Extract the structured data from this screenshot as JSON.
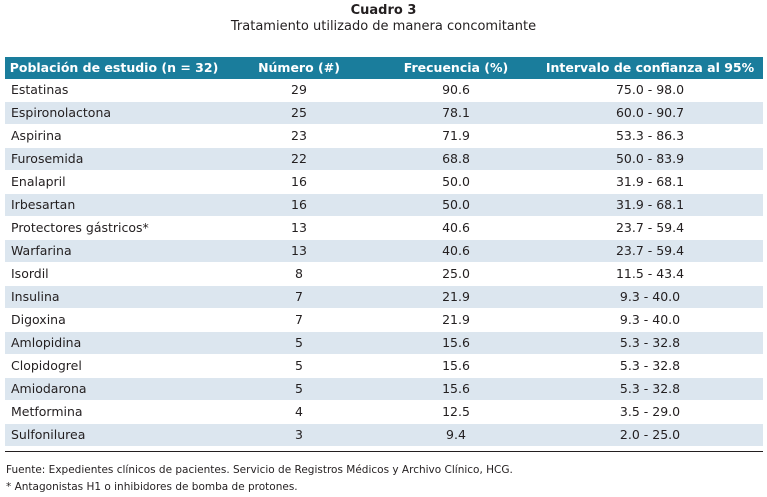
{
  "caption": {
    "number": "Cuadro 3",
    "title": "Tratamiento utilizado de manera concomitante"
  },
  "table": {
    "header_color": "#1a7d9c",
    "stripe_color": "#dce6ef",
    "columns": [
      "Población de estudio (n = 32)",
      "Número (#)",
      "Frecuencia (%)",
      "Intervalo de confianza al 95%"
    ],
    "rows": [
      [
        "Estatinas",
        "29",
        "90.6",
        "75.0 - 98.0"
      ],
      [
        "Espironolactona",
        "25",
        "78.1",
        "60.0 - 90.7"
      ],
      [
        "Aspirina",
        "23",
        "71.9",
        "53.3 - 86.3"
      ],
      [
        "Furosemida",
        "22",
        "68.8",
        "50.0 - 83.9"
      ],
      [
        "Enalapril",
        "16",
        "50.0",
        "31.9 - 68.1"
      ],
      [
        "Irbesartan",
        "16",
        "50.0",
        "31.9 - 68.1"
      ],
      [
        "Protectores gástricos*",
        "13",
        "40.6",
        "23.7 - 59.4"
      ],
      [
        "Warfarina",
        "13",
        "40.6",
        "23.7 - 59.4"
      ],
      [
        "Isordil",
        "8",
        "25.0",
        "11.5 - 43.4"
      ],
      [
        "Insulina",
        "7",
        "21.9",
        "9.3 - 40.0"
      ],
      [
        "Digoxina",
        "7",
        "21.9",
        "9.3 - 40.0"
      ],
      [
        "Amlopidina",
        "5",
        "15.6",
        "5.3 - 32.8"
      ],
      [
        "Clopidogrel",
        "5",
        "15.6",
        "5.3 - 32.8"
      ],
      [
        "Amiodarona",
        "5",
        "15.6",
        "5.3 - 32.8"
      ],
      [
        "Metformina",
        "4",
        "12.5",
        "3.5 - 29.0"
      ],
      [
        "Sulfonilurea",
        "3",
        "9.4",
        "2.0 - 25.0"
      ]
    ]
  },
  "footnotes": {
    "source": "Fuente: Expedientes clínicos de pacientes. Servicio de Registros Médicos y Archivo Clínico, HCG.",
    "note": "*  Antagonistas H1 o inhibidores de bomba de protones."
  }
}
